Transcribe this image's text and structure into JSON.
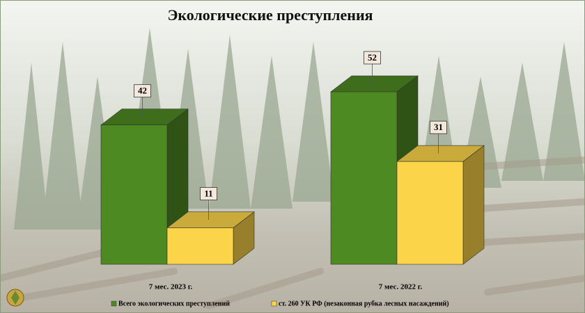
{
  "chart_data": {
    "type": "bar3d",
    "title": "Экологические преступления",
    "categories": [
      "7 мес. 2023 г.",
      "7 мес. 2022 г."
    ],
    "series": [
      {
        "name": "Всего экологических преступлений",
        "color": "#4e8a22",
        "values": [
          42,
          52
        ]
      },
      {
        "name": "ст. 260 УК РФ (незаконная рубка лесных насаждений)",
        "color": "#fbd44a",
        "values": [
          11,
          31
        ]
      }
    ]
  }
}
